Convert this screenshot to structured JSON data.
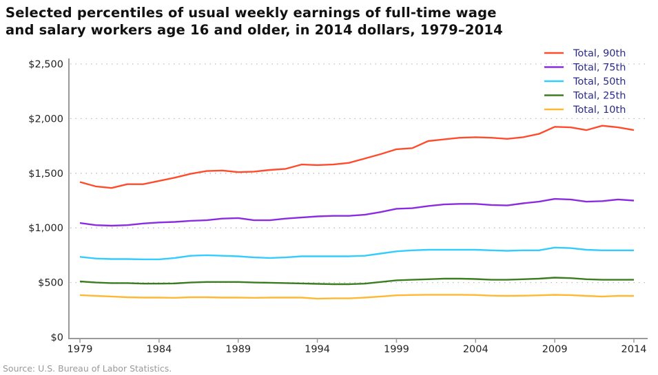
{
  "chart_data": {
    "type": "line",
    "title_line1": "Selected percentiles of usual weekly earnings of full-time wage",
    "title_line2": "and salary workers age 16 and older, in 2014 dollars, 1979–2014",
    "source": "Source: U.S. Bureau of Labor Statistics.",
    "xlabel": "",
    "ylabel": "",
    "xlim": [
      1979,
      2014
    ],
    "ylim": [
      0,
      2500
    ],
    "x_ticks": [
      "1979",
      "1984",
      "1989",
      "1994",
      "1999",
      "2004",
      "2009",
      "2014"
    ],
    "y_ticks": [
      "$0",
      "$500",
      "$1,000",
      "$1,500",
      "$2,000",
      "$2,500"
    ],
    "grid": "horizontal dotted",
    "legend_position": "top-right",
    "x": [
      1979,
      1980,
      1981,
      1982,
      1983,
      1984,
      1985,
      1986,
      1987,
      1988,
      1989,
      1990,
      1991,
      1992,
      1993,
      1994,
      1995,
      1996,
      1997,
      1998,
      1999,
      2000,
      2001,
      2002,
      2003,
      2004,
      2005,
      2006,
      2007,
      2008,
      2009,
      2010,
      2011,
      2012,
      2013,
      2014
    ],
    "series": [
      {
        "name": "Total, 90th",
        "color": "#ff4b2b",
        "values": [
          1420,
          1380,
          1365,
          1400,
          1400,
          1430,
          1460,
          1495,
          1520,
          1525,
          1510,
          1515,
          1530,
          1540,
          1580,
          1575,
          1580,
          1595,
          1635,
          1675,
          1720,
          1730,
          1795,
          1810,
          1825,
          1830,
          1825,
          1815,
          1830,
          1860,
          1925,
          1920,
          1895,
          1935,
          1920,
          1895
        ]
      },
      {
        "name": "Total, 75th",
        "color": "#8a2be2",
        "values": [
          1045,
          1025,
          1020,
          1025,
          1040,
          1050,
          1055,
          1065,
          1070,
          1085,
          1090,
          1070,
          1070,
          1085,
          1095,
          1105,
          1110,
          1110,
          1120,
          1145,
          1175,
          1180,
          1200,
          1215,
          1220,
          1220,
          1210,
          1205,
          1225,
          1240,
          1265,
          1260,
          1240,
          1245,
          1260,
          1250
        ]
      },
      {
        "name": "Total, 50th",
        "color": "#33ccff",
        "values": [
          735,
          720,
          715,
          715,
          712,
          712,
          725,
          745,
          750,
          745,
          740,
          730,
          725,
          730,
          740,
          740,
          740,
          740,
          745,
          765,
          785,
          795,
          800,
          800,
          800,
          800,
          795,
          790,
          795,
          795,
          820,
          815,
          800,
          795,
          795,
          795
        ]
      },
      {
        "name": "Total, 25th",
        "color": "#3a7d1e",
        "values": [
          510,
          500,
          495,
          495,
          490,
          490,
          492,
          500,
          505,
          505,
          505,
          500,
          498,
          495,
          492,
          488,
          485,
          485,
          490,
          505,
          520,
          525,
          530,
          535,
          535,
          532,
          525,
          525,
          530,
          535,
          545,
          540,
          530,
          525,
          525,
          525
        ]
      },
      {
        "name": "Total, 10th",
        "color": "#ffb833",
        "values": [
          385,
          378,
          372,
          365,
          362,
          362,
          360,
          365,
          365,
          362,
          362,
          360,
          362,
          362,
          362,
          352,
          355,
          355,
          362,
          372,
          383,
          386,
          388,
          388,
          388,
          386,
          380,
          378,
          380,
          383,
          387,
          385,
          378,
          372,
          378,
          378
        ]
      }
    ]
  }
}
